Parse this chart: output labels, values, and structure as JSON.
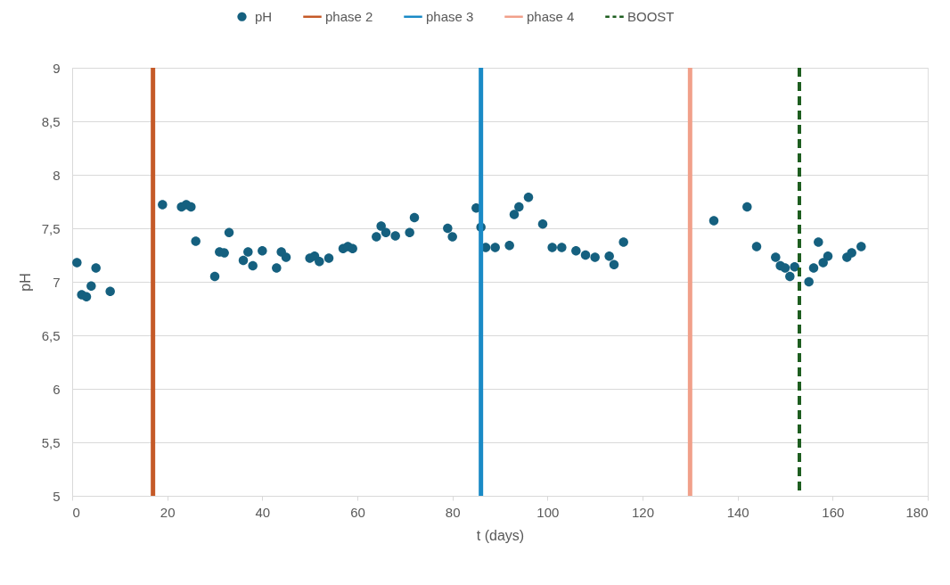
{
  "chart_data": {
    "type": "scatter",
    "xlabel": "t (days)",
    "ylabel": "pH",
    "xlim": [
      0,
      180
    ],
    "xticks": [
      0,
      20,
      40,
      60,
      80,
      100,
      120,
      140,
      160,
      180
    ],
    "ylim": [
      5,
      9
    ],
    "yticks": [
      {
        "value": 5,
        "label": "5"
      },
      {
        "value": 5.5,
        "label": "5,5"
      },
      {
        "value": 6,
        "label": "6"
      },
      {
        "value": 6.5,
        "label": "6,5"
      },
      {
        "value": 7,
        "label": "7"
      },
      {
        "value": 7.5,
        "label": "7,5"
      },
      {
        "value": 8,
        "label": "8"
      },
      {
        "value": 8.5,
        "label": "8,5"
      },
      {
        "value": 9,
        "label": "9"
      }
    ],
    "grid": "y",
    "legend": "top",
    "marker": "circle",
    "series": [
      {
        "name": "pH",
        "color": "#15607f",
        "x": [
          1,
          2,
          3,
          4,
          5,
          8,
          19,
          23,
          24,
          25,
          26,
          30,
          31,
          32,
          33,
          36,
          37,
          38,
          40,
          43,
          44,
          45,
          50,
          51,
          52,
          54,
          57,
          58,
          59,
          64,
          65,
          66,
          68,
          71,
          72,
          79,
          80,
          85,
          86,
          87,
          89,
          92,
          93,
          94,
          96,
          99,
          101,
          103,
          106,
          108,
          110,
          113,
          114,
          116,
          135,
          142,
          144,
          148,
          149,
          150,
          151,
          152,
          155,
          156,
          157,
          158,
          159,
          163,
          164,
          166
        ],
        "values": [
          7.18,
          6.88,
          6.86,
          6.96,
          7.13,
          6.91,
          7.72,
          7.7,
          7.72,
          7.7,
          7.38,
          7.05,
          7.28,
          7.27,
          7.46,
          7.2,
          7.28,
          7.15,
          7.29,
          7.13,
          7.28,
          7.23,
          7.22,
          7.24,
          7.19,
          7.22,
          7.31,
          7.33,
          7.31,
          7.42,
          7.52,
          7.46,
          7.43,
          7.46,
          7.6,
          7.5,
          7.42,
          7.69,
          7.51,
          7.32,
          7.32,
          7.34,
          7.63,
          7.7,
          7.79,
          7.54,
          7.32,
          7.32,
          7.29,
          7.25,
          7.23,
          7.24,
          7.16,
          7.37,
          7.57,
          7.7,
          7.33,
          7.23,
          7.15,
          7.13,
          7.05,
          7.14,
          7.0,
          7.13,
          7.37,
          7.18,
          7.24,
          7.23,
          7.27,
          7.33
        ]
      }
    ],
    "ref_lines": [
      {
        "axis": "x",
        "value": 17,
        "label": "phase 2",
        "color": "#c55a28",
        "line_style": "solid"
      },
      {
        "axis": "x",
        "value": 86,
        "label": "phase 3",
        "color": "#1a8ac6",
        "line_style": "solid"
      },
      {
        "axis": "x",
        "value": 130,
        "label": "phase 4",
        "color": "#f1a08a",
        "line_style": "solid"
      },
      {
        "axis": "x",
        "value": 153,
        "label": "BOOST",
        "color": "#1e5e20",
        "line_style": "dashed"
      }
    ]
  }
}
